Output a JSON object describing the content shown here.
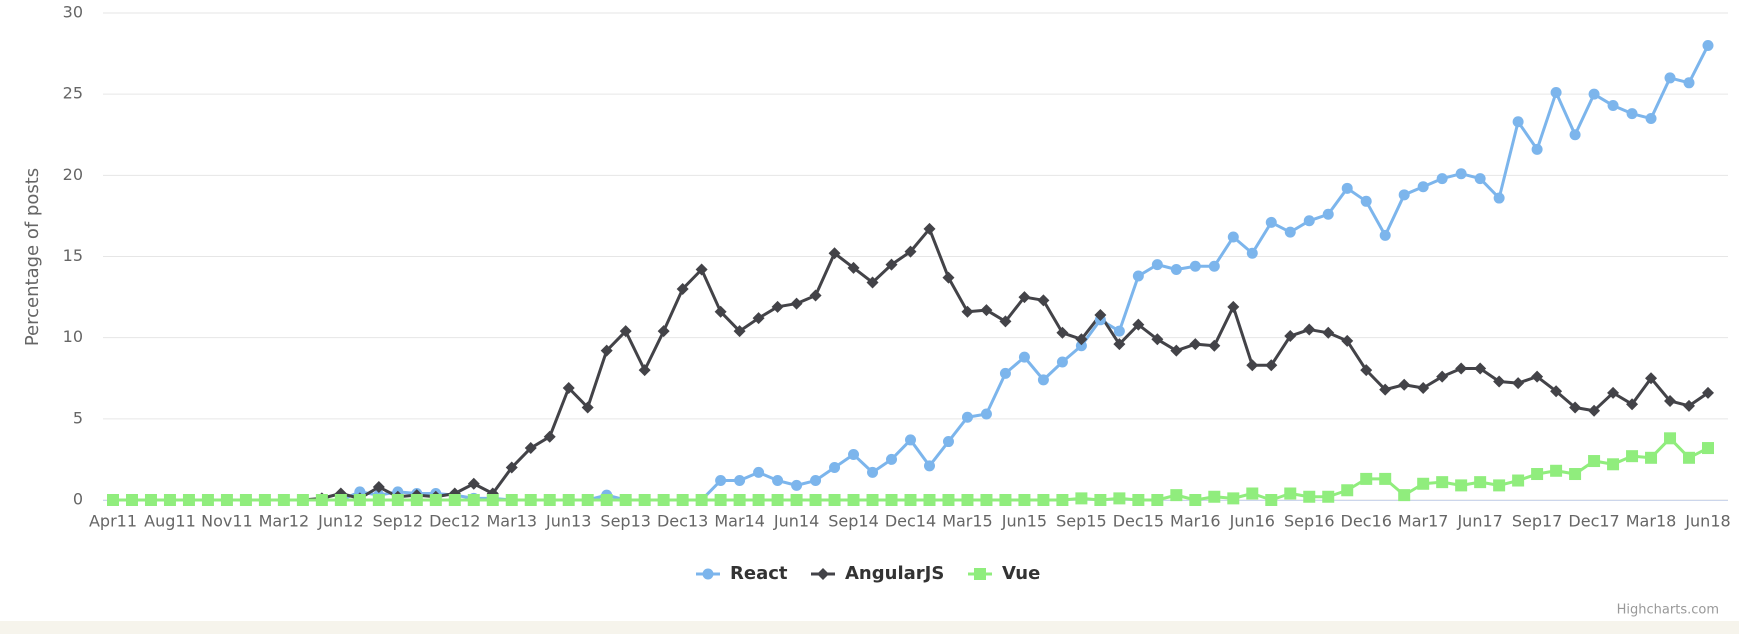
{
  "chart_data": {
    "type": "line",
    "y_axis_title": "Percentage of posts",
    "credits": "Highcharts.com",
    "categories": [
      "Apr11",
      null,
      null,
      "Aug11",
      null,
      null,
      "Nov11",
      null,
      null,
      "Mar12",
      null,
      null,
      "Jun12",
      null,
      null,
      "Sep12",
      null,
      null,
      "Dec12",
      null,
      null,
      "Mar13",
      null,
      null,
      "Jun13",
      null,
      null,
      "Sep13",
      null,
      null,
      "Dec13",
      null,
      null,
      "Mar14",
      null,
      null,
      "Jun14",
      null,
      null,
      "Sep14",
      null,
      null,
      "Dec14",
      null,
      null,
      "Mar15",
      null,
      null,
      "Jun15",
      null,
      null,
      "Sep15",
      null,
      null,
      "Dec15",
      null,
      null,
      "Mar16",
      null,
      null,
      "Jun16",
      null,
      null,
      "Sep16",
      null,
      null,
      "Dec16",
      null,
      null,
      "Mar17",
      null,
      null,
      "Jun17",
      null,
      null,
      "Sep17",
      null,
      null,
      "Dec17",
      null,
      null,
      "Mar18",
      null,
      null,
      "Jun18"
    ],
    "series": [
      {
        "name": "React",
        "color": "#7cb5ec",
        "marker": "circle",
        "values": [
          0,
          0,
          0,
          0,
          0,
          0,
          0,
          0,
          0,
          0,
          0,
          0,
          0,
          0.5,
          0.3,
          0.5,
          0.4,
          0.4,
          0.3,
          0.1,
          0.1,
          0,
          0,
          0,
          0,
          0,
          0.3,
          0,
          0,
          0,
          0,
          0,
          1.2,
          1.2,
          1.7,
          1.2,
          0.9,
          1.2,
          2,
          2.8,
          1.7,
          2.5,
          3.7,
          2.1,
          3.6,
          5.1,
          5.3,
          7.8,
          8.8,
          7.4,
          8.5,
          9.5,
          11.1,
          10.4,
          13.8,
          14.5,
          14.2,
          14.4,
          14.4,
          16.2,
          15.2,
          17.1,
          16.5,
          17.2,
          17.6,
          19.2,
          18.4,
          16.3,
          18.8,
          19.3,
          19.8,
          20.1,
          19.8,
          18.6,
          23.3,
          21.6,
          25.1,
          22.5,
          25,
          24.3,
          23.8,
          23.5,
          26,
          25.7,
          28
        ]
      },
      {
        "name": "AngularJS",
        "color": "#434348",
        "marker": "diamond",
        "values": [
          0,
          0,
          0,
          0,
          0,
          0,
          0,
          0,
          0,
          0,
          0,
          0.1,
          0.4,
          0.1,
          0.8,
          0.2,
          0.3,
          0.2,
          0.4,
          1,
          0.4,
          2,
          3.2,
          3.9,
          6.9,
          5.7,
          9.2,
          10.4,
          8,
          10.4,
          13,
          14.2,
          11.6,
          10.4,
          11.2,
          11.9,
          12.1,
          12.6,
          15.2,
          14.3,
          13.4,
          14.5,
          15.3,
          16.7,
          13.7,
          11.6,
          11.7,
          11,
          12.5,
          12.3,
          10.3,
          9.9,
          11.4,
          9.6,
          10.8,
          9.9,
          9.2,
          9.6,
          9.5,
          11.9,
          8.3,
          8.3,
          10.1,
          10.5,
          10.3,
          9.8,
          8,
          6.8,
          7.1,
          6.9,
          7.6,
          8.1,
          8.1,
          7.3,
          7.2,
          7.6,
          6.7,
          5.7,
          5.5,
          6.6,
          5.9,
          7.5,
          6.1,
          5.8,
          6.6
        ]
      },
      {
        "name": "Vue",
        "color": "#90ed7d",
        "marker": "square",
        "values": [
          0,
          0,
          0,
          0,
          0,
          0,
          0,
          0,
          0,
          0,
          0,
          0,
          0,
          0,
          0,
          0,
          0,
          0,
          0,
          0,
          0,
          0,
          0,
          0,
          0,
          0,
          0,
          0,
          0,
          0,
          0,
          0,
          0,
          0,
          0,
          0,
          0,
          0,
          0,
          0,
          0,
          0,
          0,
          0,
          0,
          0,
          0,
          0,
          0,
          0,
          0,
          0.1,
          0,
          0.1,
          0,
          0,
          0.3,
          0,
          0.2,
          0.1,
          0.4,
          0,
          0.4,
          0.2,
          0.2,
          0.6,
          1.3,
          1.3,
          0.3,
          1,
          1.1,
          0.9,
          1.1,
          0.9,
          1.2,
          1.6,
          1.8,
          1.6,
          2.4,
          2.2,
          2.7,
          2.6,
          3.8,
          2.6,
          3.2
        ]
      }
    ],
    "ylim": [
      0,
      30
    ],
    "yticks": [
      0,
      5,
      10,
      15,
      20,
      25,
      30
    ],
    "grid": true,
    "legend": "bottom"
  }
}
